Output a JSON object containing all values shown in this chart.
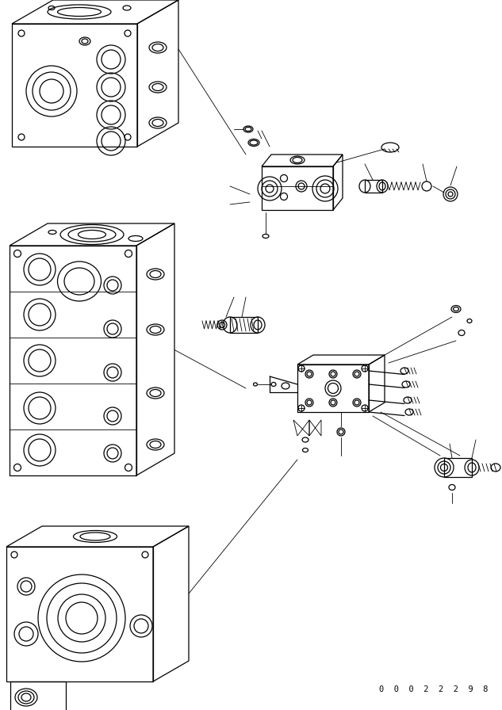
{
  "figure_width": 6.33,
  "figure_height": 8.96,
  "dpi": 100,
  "background_color": "#ffffff",
  "line_color": "#000000",
  "part_number_text": "0  0  0  2  2  2  9  8",
  "part_number_fontsize": 7.5,
  "lw_main": 0.9,
  "lw_thin": 0.6
}
